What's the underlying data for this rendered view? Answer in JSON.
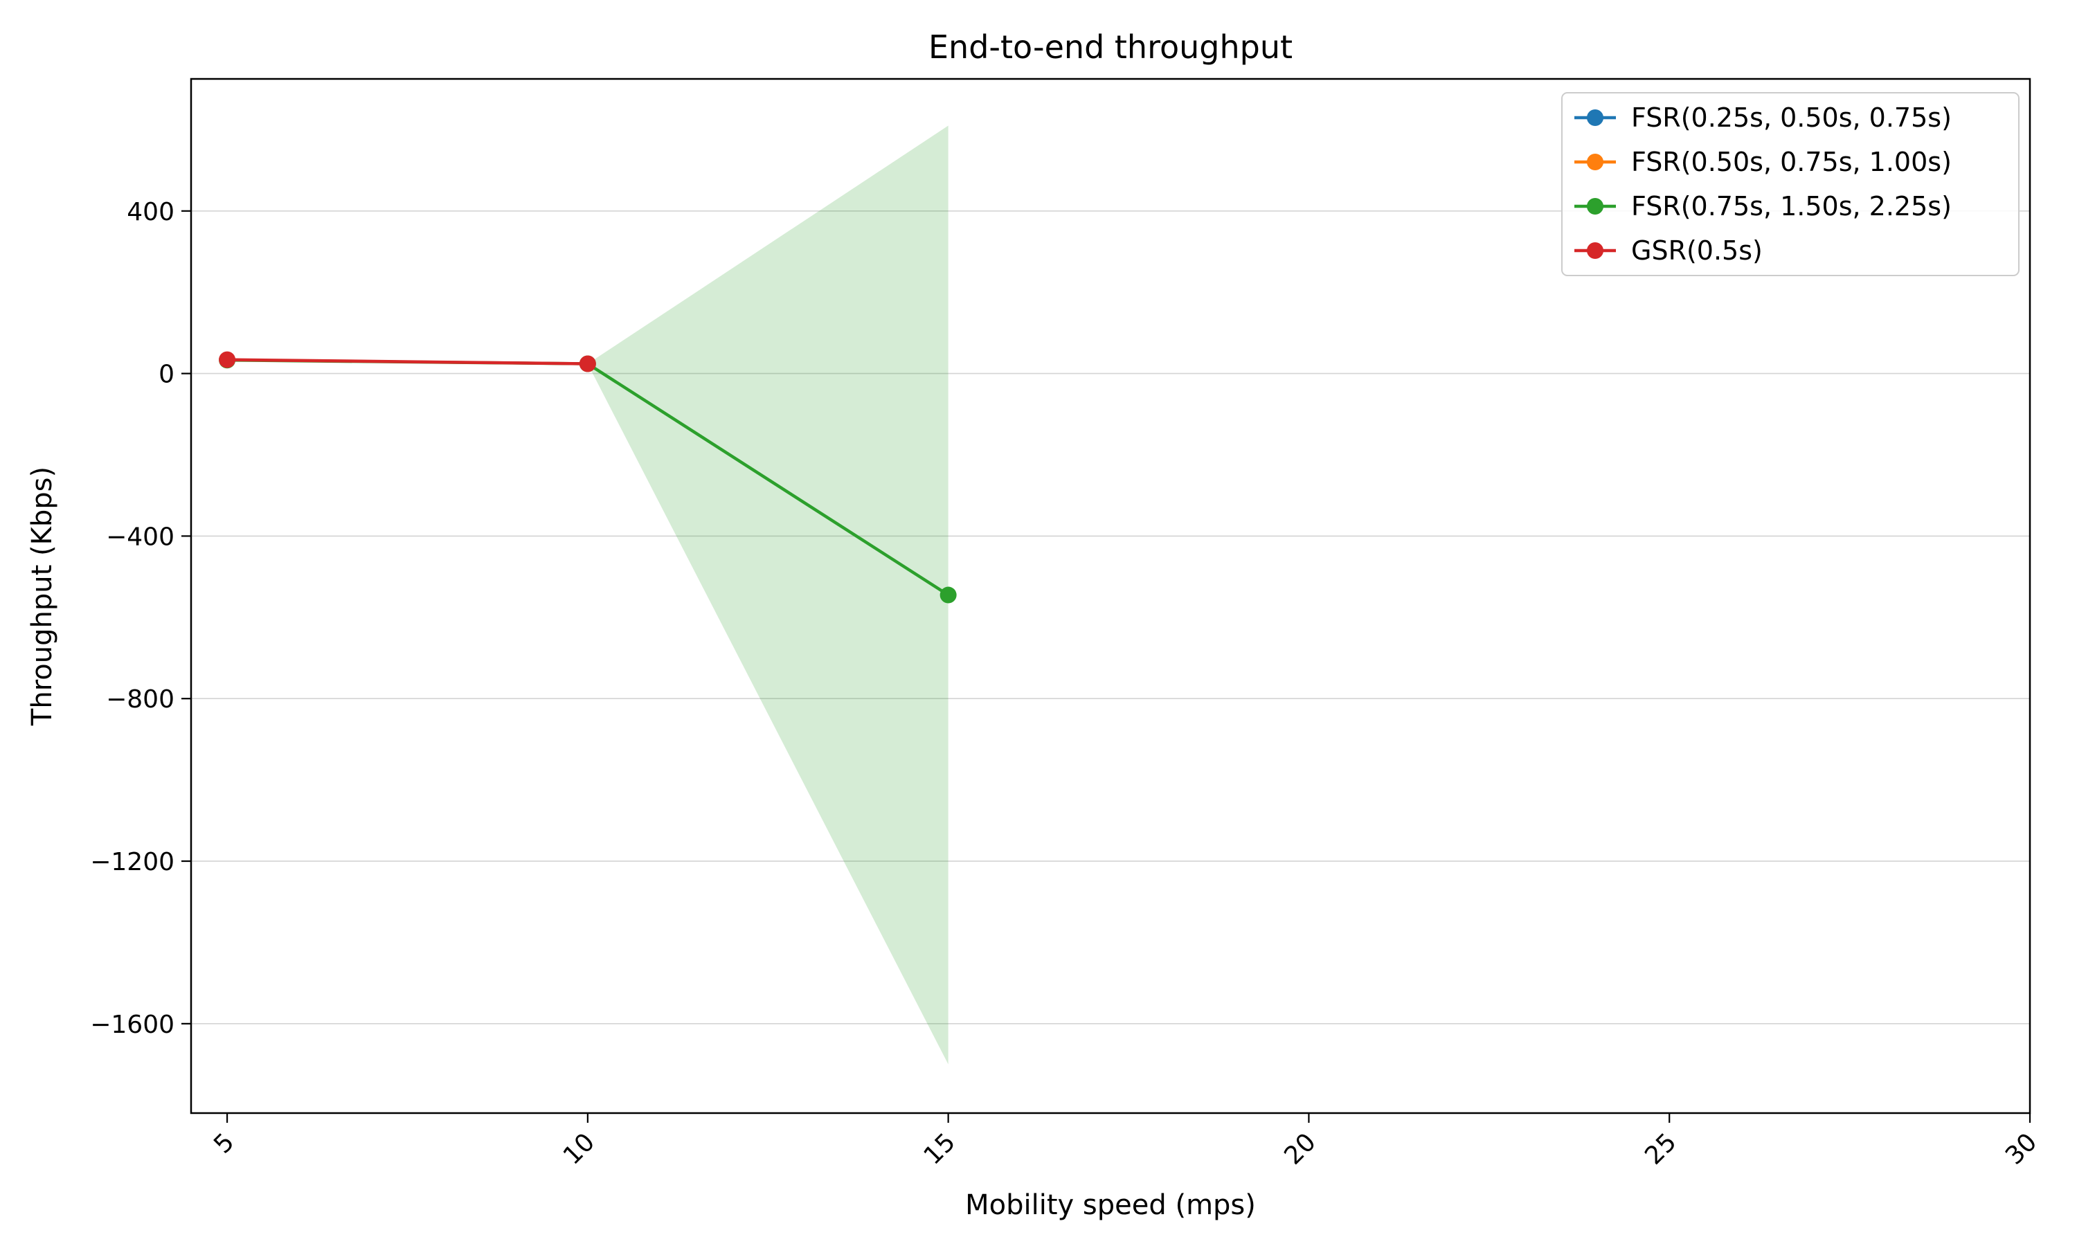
{
  "chart_data": {
    "type": "line",
    "title": "End-to-end throughput",
    "xlabel": "Mobility speed (mps)",
    "ylabel": "Throughput (Kbps)",
    "xlim": [
      4.5,
      30
    ],
    "ylim": [
      -1820,
      725
    ],
    "x_ticks": [
      5,
      10,
      15,
      20,
      25,
      30
    ],
    "x_tick_labels": [
      "5",
      "10",
      "15",
      "20",
      "25",
      "30"
    ],
    "y_ticks": [
      400,
      0,
      -400,
      -800,
      -1200,
      -1600
    ],
    "y_tick_labels": [
      "400",
      "0",
      "−400",
      "−800",
      "−1200",
      "−1600"
    ],
    "grid": "horizontal",
    "legend_position": "upper right",
    "series": [
      {
        "name": "FSR(0.25s, 0.50s, 0.75s)",
        "color": "#1f77b4",
        "x": [],
        "y": []
      },
      {
        "name": "FSR(0.50s, 0.75s, 1.00s)",
        "color": "#ff7f0e",
        "x": [],
        "y": []
      },
      {
        "name": "FSR(0.75s, 1.50s, 2.25s)",
        "color": "#2ca02c",
        "x": [
          5,
          10,
          15
        ],
        "y": [
          33,
          24,
          -545
        ],
        "band": {
          "x": [
            5,
            10,
            15
          ],
          "lower": [
            33,
            24,
            -1700
          ],
          "upper": [
            33,
            24,
            610
          ]
        }
      },
      {
        "name": "GSR(0.5s)",
        "color": "#d62728",
        "x": [
          5,
          10
        ],
        "y": [
          34,
          24
        ]
      }
    ]
  }
}
